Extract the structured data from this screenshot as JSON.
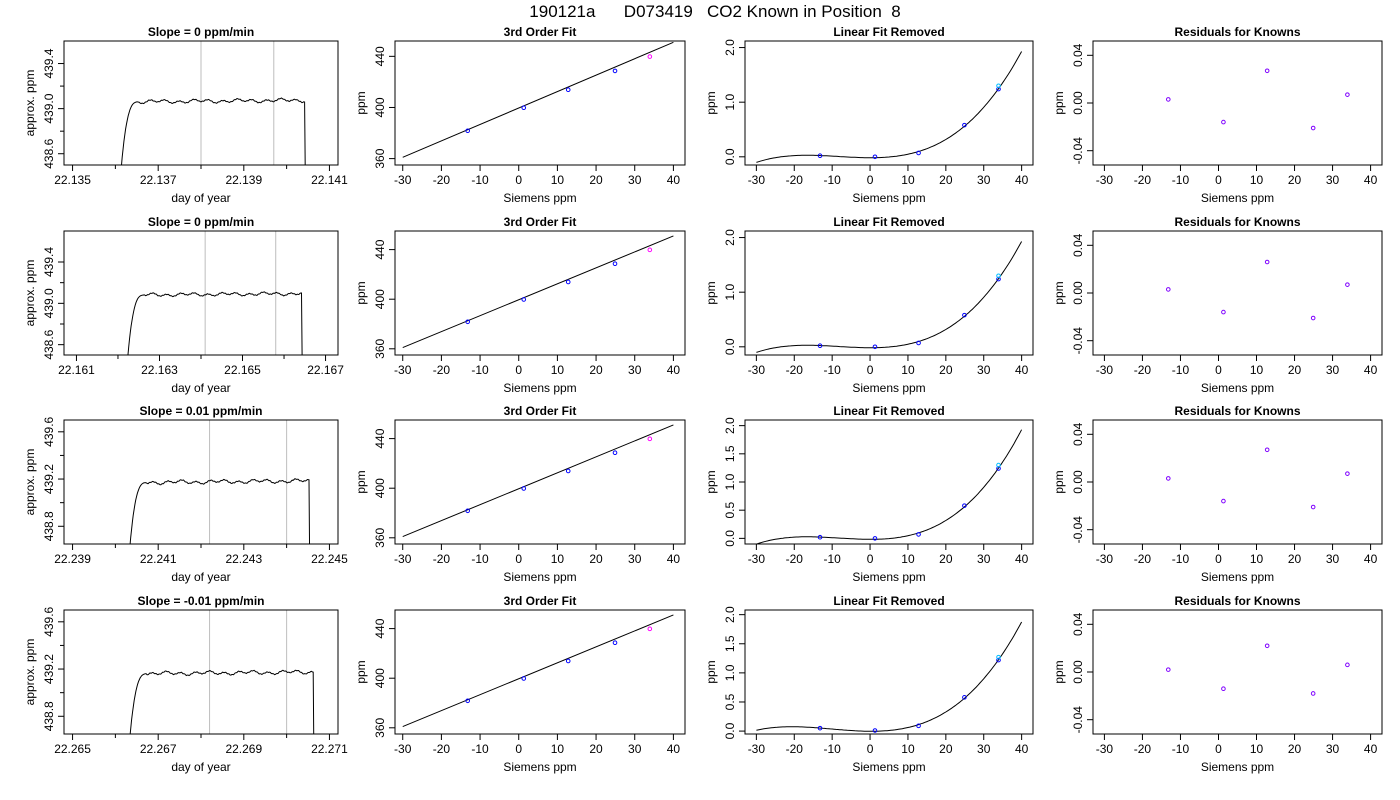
{
  "figure": {
    "title": "190121a      D073419   CO2 Known in Position  8"
  },
  "chart_data": [
    {
      "type": "line",
      "kind": "trace",
      "row": 0,
      "title": "Slope =  0  ppm/min",
      "xlabel": "day of year",
      "ylabel": "approx. ppm",
      "xlim": [
        22.1348,
        22.1412
      ],
      "ylim": [
        438.5,
        439.6
      ],
      "x_ticks": [
        22.135,
        22.137,
        22.139,
        22.141
      ],
      "x_tick_labels": [
        "22.135",
        "22.137",
        "22.139",
        "22.141"
      ],
      "y_ticks": [
        438.6,
        439.0,
        439.4
      ],
      "y_tick_labels": [
        "438.6",
        "439.0",
        "439.4"
      ],
      "start": 22.1361,
      "end": 22.1405,
      "plateau": 439.06,
      "vlines": [
        22.138,
        22.1397
      ],
      "colors": {
        "trace": "#000000",
        "vline": "#bebebe"
      }
    },
    {
      "type": "line",
      "kind": "fit",
      "row": 0,
      "title": "3rd Order Fit",
      "xlabel": "Siemens ppm",
      "ylabel": "ppm",
      "xlim": [
        -32,
        43
      ],
      "ylim": [
        355,
        452
      ],
      "x_ticks": [
        -30,
        -20,
        -10,
        0,
        10,
        20,
        30,
        40
      ],
      "x_tick_labels": [
        "-30",
        "-20",
        "-10",
        "0",
        "10",
        "20",
        "30",
        "40"
      ],
      "y_ticks": [
        360,
        400,
        440
      ],
      "y_tick_labels": [
        "360",
        "400",
        "440"
      ],
      "curve": {
        "x_range": [
          -30,
          40
        ],
        "y_at_min": 361,
        "y_at_max": 451
      },
      "points": [
        {
          "x": -13.2,
          "y": 421.8,
          "color": "blue"
        },
        {
          "x": 1.3,
          "y": 439.8,
          "color": "blue"
        },
        {
          "x": 12.8,
          "y": 453.9,
          "color": "blue"
        },
        {
          "x": 24.9,
          "y": 468.6,
          "color": "blue"
        },
        {
          "x": 33.9,
          "y": 479.8,
          "color": "magenta"
        }
      ],
      "points_display_offset": -40
    },
    {
      "type": "scatter",
      "kind": "linres",
      "row": 0,
      "title": "Linear Fit Removed",
      "xlabel": "Siemens ppm",
      "ylabel": "ppm",
      "xlim": [
        -33,
        43
      ],
      "ylim": [
        -0.15,
        2.12
      ],
      "x_ticks": [
        -30,
        -20,
        -10,
        0,
        10,
        20,
        30,
        40
      ],
      "x_tick_labels": [
        "-30",
        "-20",
        "-10",
        "0",
        "10",
        "20",
        "30",
        "40"
      ],
      "y_ticks": [
        0,
        1,
        2
      ],
      "y_tick_labels": [
        "0.0",
        "1.0",
        "2.0"
      ],
      "points": [
        {
          "x": -13.2,
          "y": 0.02
        },
        {
          "x": 1.3,
          "y": 0.0
        },
        {
          "x": 12.8,
          "y": 0.07
        },
        {
          "x": 24.9,
          "y": 0.58
        },
        {
          "x": 33.9,
          "y": 1.24
        },
        {
          "x": 33.9,
          "y": 1.3,
          "color": "cyan"
        }
      ]
    },
    {
      "type": "scatter",
      "kind": "resid",
      "row": 0,
      "title": "Residuals for Knowns",
      "xlabel": "Siemens ppm",
      "ylabel": "ppm",
      "xlim": [
        -33,
        43
      ],
      "ylim": [
        -0.052,
        0.052
      ],
      "x_ticks": [
        -30,
        -20,
        -10,
        0,
        10,
        20,
        30,
        40
      ],
      "x_tick_labels": [
        "-30",
        "-20",
        "-10",
        "0",
        "10",
        "20",
        "30",
        "40"
      ],
      "y_ticks": [
        -0.04,
        0,
        0.04
      ],
      "y_tick_labels": [
        "-0.04",
        "0.00",
        "0.04"
      ],
      "points": [
        {
          "x": -13.2,
          "y": 0.003
        },
        {
          "x": 1.3,
          "y": -0.016
        },
        {
          "x": 12.8,
          "y": 0.027
        },
        {
          "x": 24.9,
          "y": -0.021
        },
        {
          "x": 33.9,
          "y": 0.007
        }
      ]
    },
    {
      "type": "line",
      "kind": "trace",
      "row": 1,
      "title": "Slope =  0  ppm/min",
      "xlabel": "day of year",
      "ylabel": "approx. ppm",
      "xlim": [
        22.1607,
        22.1673
      ],
      "ylim": [
        438.5,
        439.7
      ],
      "x_ticks": [
        22.161,
        22.163,
        22.165,
        22.167
      ],
      "x_tick_labels": [
        "22.161",
        "22.163",
        "22.165",
        "22.167"
      ],
      "y_ticks": [
        438.6,
        439.0,
        439.4
      ],
      "y_tick_labels": [
        "438.6",
        "439.0",
        "439.4"
      ],
      "start": 22.1622,
      "end": 22.1665,
      "plateau": 439.08,
      "vlines": [
        22.1641,
        22.1658
      ],
      "colors": {
        "trace": "#000000",
        "vline": "#bebebe"
      }
    },
    {
      "type": "line",
      "kind": "fit",
      "row": 1,
      "title": "3rd Order Fit",
      "xlabel": "Siemens ppm",
      "ylabel": "ppm",
      "xlim": [
        -32,
        43
      ],
      "ylim": [
        355,
        455
      ],
      "x_ticks": [
        -30,
        -20,
        -10,
        0,
        10,
        20,
        30,
        40
      ],
      "x_tick_labels": [
        "-30",
        "-20",
        "-10",
        "0",
        "10",
        "20",
        "30",
        "40"
      ],
      "y_ticks": [
        360,
        400,
        440
      ],
      "y_tick_labels": [
        "360",
        "400",
        "440"
      ],
      "curve": {
        "x_range": [
          -30,
          40
        ],
        "y_at_min": 361,
        "y_at_max": 451
      },
      "points": [
        {
          "x": -13.2,
          "y": 421.8,
          "color": "blue"
        },
        {
          "x": 1.3,
          "y": 439.8,
          "color": "blue"
        },
        {
          "x": 12.8,
          "y": 453.9,
          "color": "blue"
        },
        {
          "x": 24.9,
          "y": 468.6,
          "color": "blue"
        },
        {
          "x": 33.9,
          "y": 479.8,
          "color": "magenta"
        }
      ],
      "points_display_offset": -40
    },
    {
      "type": "scatter",
      "kind": "linres",
      "row": 1,
      "title": "Linear Fit Removed",
      "xlabel": "Siemens ppm",
      "ylabel": "ppm",
      "xlim": [
        -33,
        43
      ],
      "ylim": [
        -0.15,
        2.12
      ],
      "x_ticks": [
        -30,
        -20,
        -10,
        0,
        10,
        20,
        30,
        40
      ],
      "x_tick_labels": [
        "-30",
        "-20",
        "-10",
        "0",
        "10",
        "20",
        "30",
        "40"
      ],
      "y_ticks": [
        0,
        1,
        2
      ],
      "y_tick_labels": [
        "0.0",
        "1.0",
        "2.0"
      ],
      "points": [
        {
          "x": -13.2,
          "y": 0.02
        },
        {
          "x": 1.3,
          "y": 0.0
        },
        {
          "x": 12.8,
          "y": 0.07
        },
        {
          "x": 24.9,
          "y": 0.58
        },
        {
          "x": 33.9,
          "y": 1.24
        },
        {
          "x": 33.9,
          "y": 1.3,
          "color": "cyan"
        }
      ]
    },
    {
      "type": "scatter",
      "kind": "resid",
      "row": 1,
      "title": "Residuals for Knowns",
      "xlabel": "Siemens ppm",
      "ylabel": "ppm",
      "xlim": [
        -33,
        43
      ],
      "ylim": [
        -0.052,
        0.052
      ],
      "x_ticks": [
        -30,
        -20,
        -10,
        0,
        10,
        20,
        30,
        40
      ],
      "x_tick_labels": [
        "-30",
        "-20",
        "-10",
        "0",
        "10",
        "20",
        "30",
        "40"
      ],
      "y_ticks": [
        -0.04,
        0,
        0.04
      ],
      "y_tick_labels": [
        "-0.04",
        "0.00",
        "0.04"
      ],
      "points": [
        {
          "x": -13.2,
          "y": 0.003
        },
        {
          "x": 1.3,
          "y": -0.016
        },
        {
          "x": 12.8,
          "y": 0.026
        },
        {
          "x": 24.9,
          "y": -0.021
        },
        {
          "x": 33.9,
          "y": 0.007
        }
      ]
    },
    {
      "type": "line",
      "kind": "trace",
      "row": 2,
      "title": "Slope =  0.01  ppm/min",
      "xlabel": "day of year",
      "ylabel": "approx. ppm",
      "xlim": [
        22.2388,
        22.2452
      ],
      "ylim": [
        438.65,
        439.7
      ],
      "x_ticks": [
        22.239,
        22.241,
        22.243,
        22.245
      ],
      "x_tick_labels": [
        "22.239",
        "22.241",
        "22.243",
        "22.245"
      ],
      "y_ticks": [
        438.8,
        439.2,
        439.6
      ],
      "y_tick_labels": [
        "438.8",
        "439.2",
        "439.6"
      ],
      "start": 22.2403,
      "end": 22.2446,
      "plateau": 439.17,
      "vlines": [
        22.2422,
        22.244
      ],
      "colors": {
        "trace": "#000000",
        "vline": "#bebebe"
      }
    },
    {
      "type": "line",
      "kind": "fit",
      "row": 2,
      "title": "3rd Order Fit",
      "xlabel": "Siemens ppm",
      "ylabel": "ppm",
      "xlim": [
        -32,
        43
      ],
      "ylim": [
        355,
        455
      ],
      "x_ticks": [
        -30,
        -20,
        -10,
        0,
        10,
        20,
        30,
        40
      ],
      "x_tick_labels": [
        "-30",
        "-20",
        "-10",
        "0",
        "10",
        "20",
        "30",
        "40"
      ],
      "y_ticks": [
        360,
        400,
        440
      ],
      "y_tick_labels": [
        "360",
        "400",
        "440"
      ],
      "curve": {
        "x_range": [
          -30,
          40
        ],
        "y_at_min": 361,
        "y_at_max": 451
      },
      "points": [
        {
          "x": -13.2,
          "y": 421.8,
          "color": "blue"
        },
        {
          "x": 1.3,
          "y": 439.8,
          "color": "blue"
        },
        {
          "x": 12.8,
          "y": 453.9,
          "color": "blue"
        },
        {
          "x": 24.9,
          "y": 468.6,
          "color": "blue"
        },
        {
          "x": 33.9,
          "y": 479.8,
          "color": "magenta"
        }
      ],
      "points_display_offset": -40
    },
    {
      "type": "scatter",
      "kind": "linres",
      "row": 2,
      "title": "Linear Fit Removed",
      "xlabel": "Siemens ppm",
      "ylabel": "ppm",
      "xlim": [
        -33,
        43
      ],
      "ylim": [
        -0.1,
        2.1
      ],
      "x_ticks": [
        -30,
        -20,
        -10,
        0,
        10,
        20,
        30,
        40
      ],
      "x_tick_labels": [
        "-30",
        "-20",
        "-10",
        "0",
        "10",
        "20",
        "30",
        "40"
      ],
      "y_ticks": [
        0,
        0.5,
        1,
        1.5,
        2
      ],
      "y_tick_labels": [
        "0.0",
        "0.5",
        "1.0",
        "1.5",
        "2.0"
      ],
      "points": [
        {
          "x": -13.2,
          "y": 0.02
        },
        {
          "x": 1.3,
          "y": 0.0
        },
        {
          "x": 12.8,
          "y": 0.07
        },
        {
          "x": 24.9,
          "y": 0.58
        },
        {
          "x": 33.9,
          "y": 1.24
        },
        {
          "x": 33.9,
          "y": 1.3,
          "color": "cyan"
        }
      ]
    },
    {
      "type": "scatter",
      "kind": "resid",
      "row": 2,
      "title": "Residuals for Knowns",
      "xlabel": "Siemens ppm",
      "ylabel": "ppm",
      "xlim": [
        -33,
        43
      ],
      "ylim": [
        -0.052,
        0.052
      ],
      "x_ticks": [
        -30,
        -20,
        -10,
        0,
        10,
        20,
        30,
        40
      ],
      "x_tick_labels": [
        "-30",
        "-20",
        "-10",
        "0",
        "10",
        "20",
        "30",
        "40"
      ],
      "y_ticks": [
        -0.04,
        0,
        0.04
      ],
      "y_tick_labels": [
        "-0.04",
        "0.00",
        "0.04"
      ],
      "points": [
        {
          "x": -13.2,
          "y": 0.003
        },
        {
          "x": 1.3,
          "y": -0.016
        },
        {
          "x": 12.8,
          "y": 0.027
        },
        {
          "x": 24.9,
          "y": -0.021
        },
        {
          "x": 33.9,
          "y": 0.007
        }
      ]
    },
    {
      "type": "line",
      "kind": "trace",
      "row": 3,
      "title": "Slope =  -0.01  ppm/min",
      "xlabel": "day of year",
      "ylabel": "approx. ppm",
      "xlim": [
        22.2648,
        22.2712
      ],
      "ylim": [
        438.65,
        439.7
      ],
      "x_ticks": [
        22.265,
        22.267,
        22.269,
        22.271
      ],
      "x_tick_labels": [
        "22.265",
        "22.267",
        "22.269",
        "22.271"
      ],
      "y_ticks": [
        438.8,
        439.2,
        439.6
      ],
      "y_tick_labels": [
        "438.8",
        "439.2",
        "439.6"
      ],
      "start": 22.2663,
      "end": 22.2707,
      "plateau": 439.16,
      "vlines": [
        22.2682,
        22.27
      ],
      "colors": {
        "trace": "#000000",
        "vline": "#bebebe"
      }
    },
    {
      "type": "line",
      "kind": "fit",
      "row": 3,
      "title": "3rd Order Fit",
      "xlabel": "Siemens ppm",
      "ylabel": "ppm",
      "xlim": [
        -32,
        43
      ],
      "ylim": [
        355,
        455
      ],
      "x_ticks": [
        -30,
        -20,
        -10,
        0,
        10,
        20,
        30,
        40
      ],
      "x_tick_labels": [
        "-30",
        "-20",
        "-10",
        "0",
        "10",
        "20",
        "30",
        "40"
      ],
      "y_ticks": [
        360,
        400,
        440
      ],
      "y_tick_labels": [
        "360",
        "400",
        "440"
      ],
      "curve": {
        "x_range": [
          -30,
          40
        ],
        "y_at_min": 361,
        "y_at_max": 451
      },
      "points": [
        {
          "x": -13.2,
          "y": 421.8,
          "color": "blue"
        },
        {
          "x": 1.3,
          "y": 439.8,
          "color": "blue"
        },
        {
          "x": 12.8,
          "y": 453.9,
          "color": "blue"
        },
        {
          "x": 24.9,
          "y": 468.6,
          "color": "blue"
        },
        {
          "x": 33.9,
          "y": 479.8,
          "color": "magenta"
        }
      ],
      "points_display_offset": -40
    },
    {
      "type": "scatter",
      "kind": "linres",
      "row": 3,
      "title": "Linear Fit Removed",
      "xlabel": "Siemens ppm",
      "ylabel": "ppm",
      "xlim": [
        -33,
        43
      ],
      "ylim": [
        -0.05,
        2.08
      ],
      "x_ticks": [
        -30,
        -20,
        -10,
        0,
        10,
        20,
        30,
        40
      ],
      "x_tick_labels": [
        "-30",
        "-20",
        "-10",
        "0",
        "10",
        "20",
        "30",
        "40"
      ],
      "y_ticks": [
        0,
        0.5,
        1,
        1.5,
        2
      ],
      "y_tick_labels": [
        "0.0",
        "0.5",
        "1.0",
        "1.5",
        "2.0"
      ],
      "points": [
        {
          "x": -13.2,
          "y": 0.05
        },
        {
          "x": 1.3,
          "y": 0.01
        },
        {
          "x": 12.8,
          "y": 0.09
        },
        {
          "x": 24.9,
          "y": 0.58
        },
        {
          "x": 33.9,
          "y": 1.22
        },
        {
          "x": 33.9,
          "y": 1.27,
          "color": "cyan"
        }
      ]
    },
    {
      "type": "scatter",
      "kind": "resid",
      "row": 3,
      "title": "Residuals for Knowns",
      "xlabel": "Siemens ppm",
      "ylabel": "ppm",
      "xlim": [
        -33,
        43
      ],
      "ylim": [
        -0.052,
        0.052
      ],
      "x_ticks": [
        -30,
        -20,
        -10,
        0,
        10,
        20,
        30,
        40
      ],
      "x_tick_labels": [
        "-30",
        "-20",
        "-10",
        "0",
        "10",
        "20",
        "30",
        "40"
      ],
      "y_ticks": [
        -0.04,
        0,
        0.04
      ],
      "y_tick_labels": [
        "-0.04",
        "0.00",
        "0.04"
      ],
      "points": [
        {
          "x": -13.2,
          "y": 0.002
        },
        {
          "x": 1.3,
          "y": -0.014
        },
        {
          "x": 12.8,
          "y": 0.022
        },
        {
          "x": 24.9,
          "y": -0.018
        },
        {
          "x": 33.9,
          "y": 0.006
        }
      ]
    }
  ]
}
